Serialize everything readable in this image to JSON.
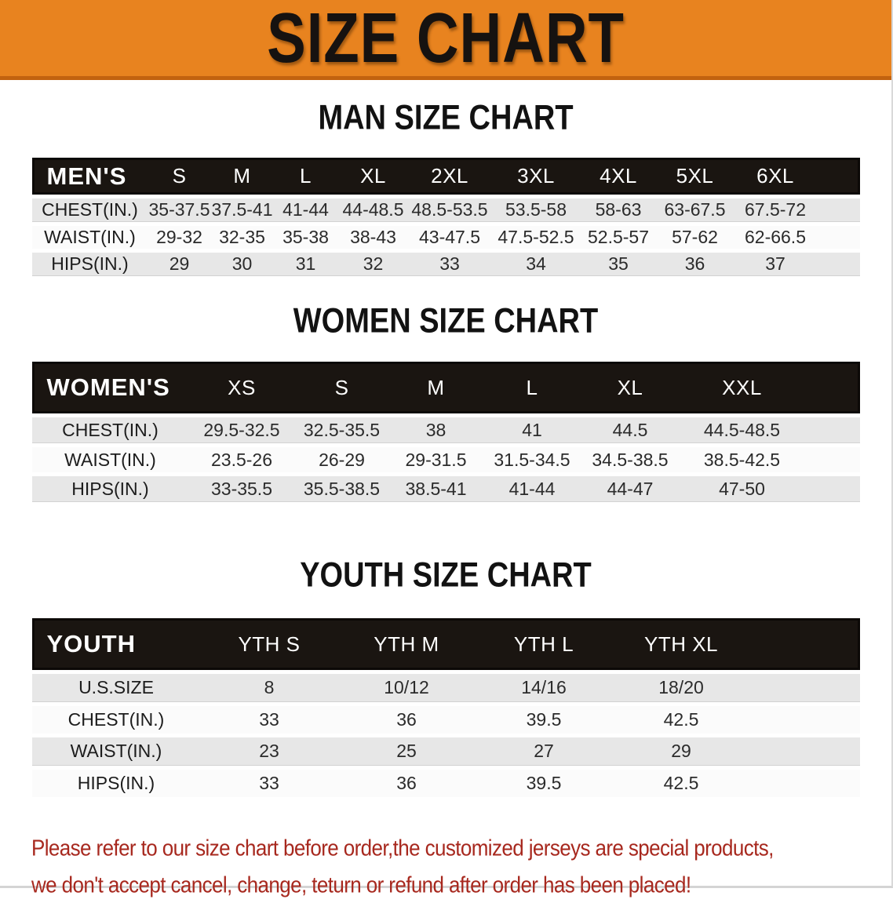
{
  "banner": {
    "title": "SIZE CHART",
    "bg_color": "#E8831F",
    "border_color": "#C2620F",
    "text_color": "#161210"
  },
  "colors": {
    "header_bar": "#1A1511",
    "row_gray": "#E7E7E7",
    "row_white": "#FBFBFB",
    "disclaimer_red": "#A7281E"
  },
  "sections": {
    "men": {
      "heading": "MAN SIZE CHART",
      "table": {
        "header_label": "MEN'S",
        "columns": [
          "S",
          "M",
          "L",
          "XL",
          "2XL",
          "3XL",
          "4XL",
          "5XL",
          "6XL"
        ],
        "rows": [
          {
            "label": "CHEST(IN.)",
            "values": [
              "35-37.5",
              "37.5-41",
              "41-44",
              "44-48.5",
              "48.5-53.5",
              "53.5-58",
              "58-63",
              "63-67.5",
              "67.5-72"
            ]
          },
          {
            "label": "WAIST(IN.)",
            "values": [
              "29-32",
              "32-35",
              "35-38",
              "38-43",
              "43-47.5",
              "47.5-52.5",
              "52.5-57",
              "57-62",
              "62-66.5"
            ]
          },
          {
            "label": "HIPS(IN.)",
            "values": [
              "29",
              "30",
              "31",
              "32",
              "33",
              "34",
              "35",
              "36",
              "37"
            ]
          }
        ]
      }
    },
    "women": {
      "heading": "WOMEN SIZE CHART",
      "table": {
        "header_label": "WOMEN'S",
        "columns": [
          "XS",
          "S",
          "M",
          "L",
          "XL",
          "XXL"
        ],
        "rows": [
          {
            "label": "CHEST(IN.)",
            "values": [
              "29.5-32.5",
              "32.5-35.5",
              "38",
              "41",
              "44.5",
              "44.5-48.5"
            ]
          },
          {
            "label": "WAIST(IN.)",
            "values": [
              "23.5-26",
              "26-29",
              "29-31.5",
              "31.5-34.5",
              "34.5-38.5",
              "38.5-42.5"
            ]
          },
          {
            "label": "HIPS(IN.)",
            "values": [
              "33-35.5",
              "35.5-38.5",
              "38.5-41",
              "41-44",
              "44-47",
              "47-50"
            ]
          }
        ]
      }
    },
    "youth": {
      "heading": "YOUTH SIZE CHART",
      "table": {
        "header_label": "YOUTH",
        "columns": [
          "YTH S",
          "YTH M",
          "YTH L",
          "YTH XL"
        ],
        "rows": [
          {
            "label": "U.S.SIZE",
            "values": [
              "8",
              "10/12",
              "14/16",
              "18/20"
            ]
          },
          {
            "label": "CHEST(IN.)",
            "values": [
              "33",
              "36",
              "39.5",
              "42.5"
            ]
          },
          {
            "label": "WAIST(IN.)",
            "values": [
              "23",
              "25",
              "27",
              "29"
            ]
          },
          {
            "label": "HIPS(IN.)",
            "values": [
              "33",
              "36",
              "39.5",
              "42.5"
            ]
          }
        ]
      }
    }
  },
  "disclaimer": {
    "line1": "Please refer to our size chart before order,the customized jerseys are special products,",
    "line2": "we don't accept cancel, change, teturn or refund after order has been placed!"
  }
}
